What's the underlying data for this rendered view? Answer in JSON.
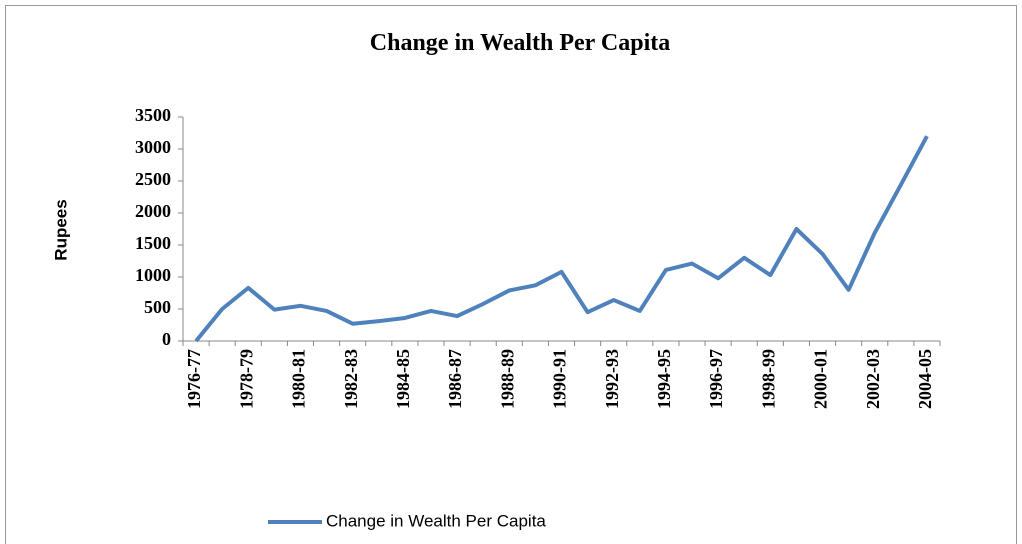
{
  "chart_data": {
    "type": "line",
    "title": "Change in Wealth  Per Capita",
    "y_label": "Rupees",
    "categories": [
      "1976-77",
      null,
      "1978-79",
      null,
      "1980-81",
      null,
      "1982-83",
      null,
      "1984-85",
      null,
      "1986-87",
      null,
      "1988-89",
      null,
      "1990-91",
      null,
      "1992-93",
      null,
      "1994-95",
      null,
      "1996-97",
      null,
      "1998-99",
      null,
      "2000-01",
      null,
      "2002-03",
      null,
      "2004-05"
    ],
    "series": [
      {
        "name": "Change in Wealth  Per Capita",
        "color": "#4f81bd",
        "values": [
          0,
          500,
          830,
          490,
          550,
          470,
          270,
          310,
          360,
          470,
          390,
          580,
          790,
          870,
          1080,
          450,
          640,
          470,
          1110,
          1210,
          980,
          1300,
          1030,
          1750,
          1360,
          800,
          1690,
          2440,
          3200
        ]
      }
    ],
    "ylim": [
      0,
      3500
    ],
    "yticks": [
      0,
      500,
      1000,
      1500,
      2000,
      2500,
      3000,
      3500
    ],
    "grid": false,
    "legend": "bottom"
  }
}
